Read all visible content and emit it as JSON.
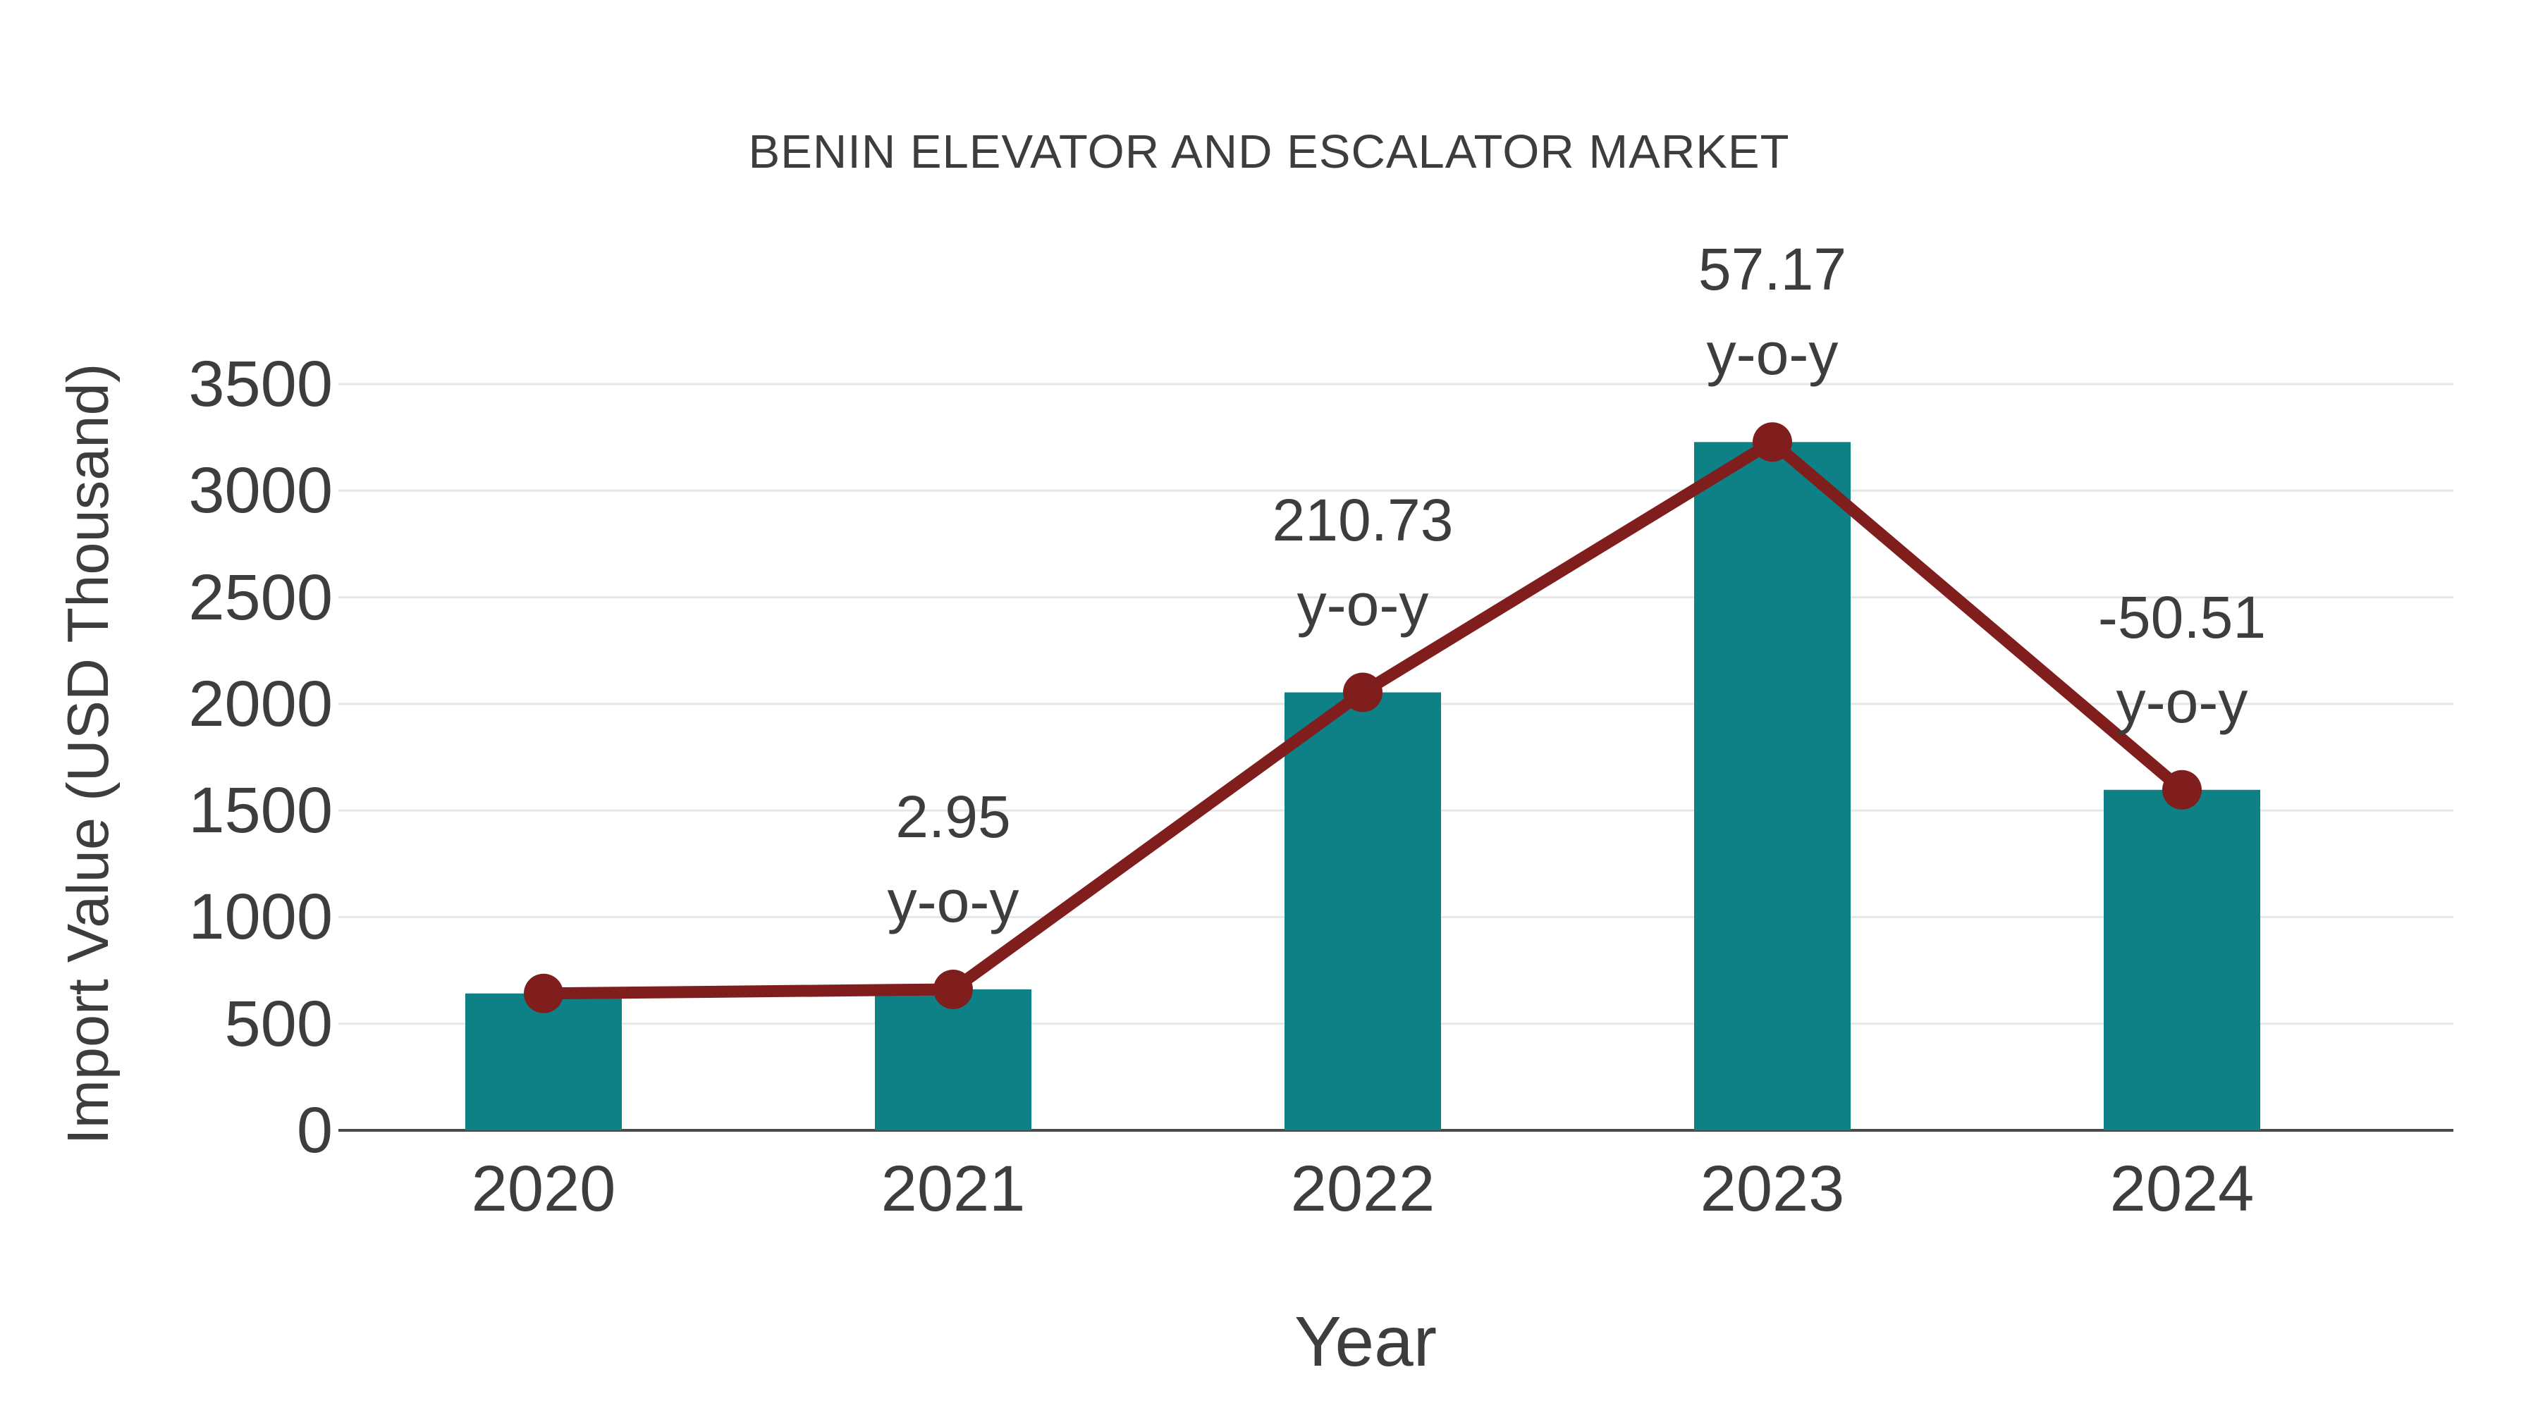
{
  "chart_data": {
    "type": "bar",
    "title": "BENIN ELEVATOR AND ESCALATOR MARKET",
    "xlabel": "Year",
    "ylabel": "Import Value (USD Thousand)",
    "categories": [
      "2020",
      "2021",
      "2022",
      "2023",
      "2024"
    ],
    "series": [
      {
        "name": "Import Value",
        "type": "bar",
        "values": [
          642,
          661,
          2054,
          3228,
          1597
        ]
      },
      {
        "name": "Import Value trend",
        "type": "line",
        "values": [
          642,
          661,
          2054,
          3228,
          1597
        ]
      }
    ],
    "annotations": [
      {
        "category": "2021",
        "value_label": "2.95",
        "suffix_label": "y-o-y"
      },
      {
        "category": "2022",
        "value_label": "210.73",
        "suffix_label": "y-o-y"
      },
      {
        "category": "2023",
        "value_label": "57.17",
        "suffix_label": "y-o-y"
      },
      {
        "category": "2024",
        "value_label": "-50.51",
        "suffix_label": "y-o-y"
      }
    ],
    "y_ticks": [
      0,
      500,
      1000,
      1500,
      2000,
      2500,
      3000,
      3500
    ],
    "ylim": [
      0,
      3500
    ],
    "grid": true,
    "legend": false
  },
  "colors": {
    "bar": "#0d8186",
    "line": "#801d1d",
    "marker": "#801d1d",
    "grid": "#e6e6e6",
    "axis": "#4a4a4a",
    "text": "#3d3d3d",
    "background": "#ffffff"
  }
}
